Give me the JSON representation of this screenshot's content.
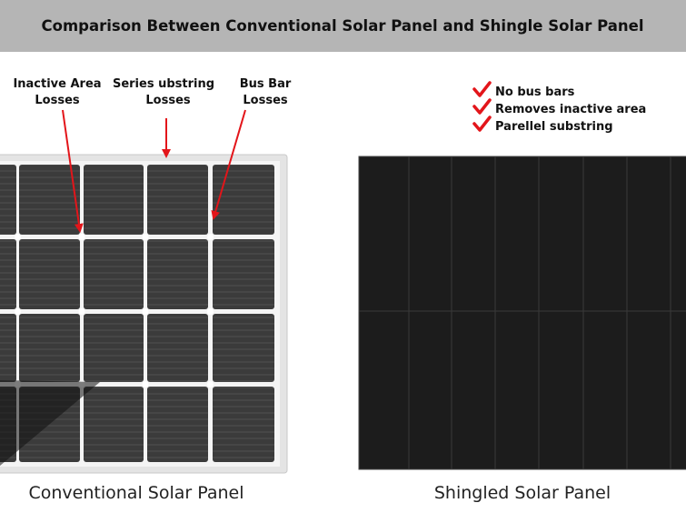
{
  "header": {
    "title": "Comparison Between Conventional Solar Panel and  Shingle Solar Panel"
  },
  "conventional": {
    "annotations": [
      {
        "lines": [
          "Inactive Area",
          "Losses"
        ]
      },
      {
        "lines": [
          "Series ubstring",
          "Losses"
        ]
      },
      {
        "lines": [
          "Bus Bar",
          "Losses"
        ]
      }
    ],
    "caption": "Conventional Solar Panel"
  },
  "shingled": {
    "checklist": [
      "No bus bars",
      "Removes inactive area",
      "Parellel substring"
    ],
    "caption": "Shingled Solar Panel"
  }
}
